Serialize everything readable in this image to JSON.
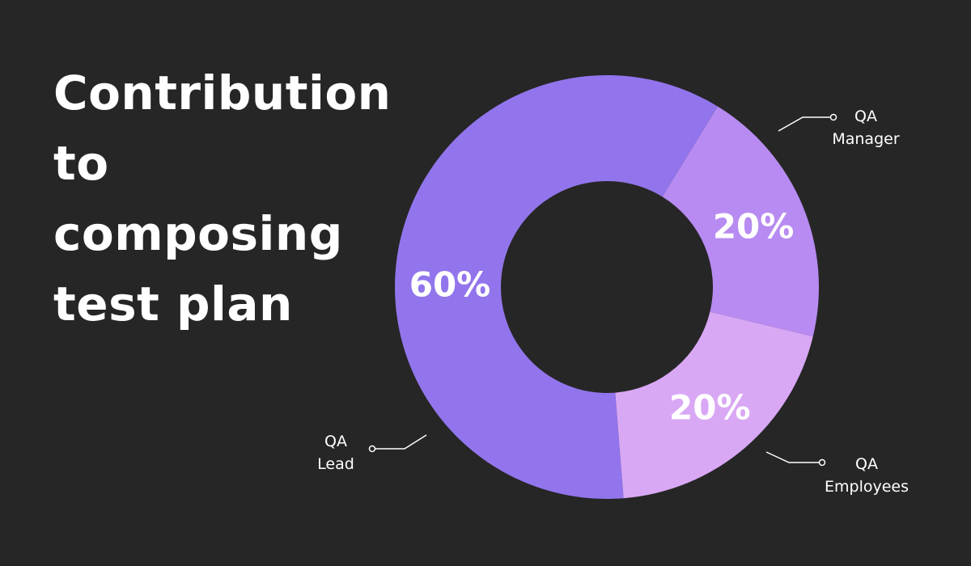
{
  "chart_data": {
    "type": "pie",
    "title": "Contribution to composing test plan",
    "slices": [
      {
        "label": "QA Manager",
        "value": 20,
        "display": "20%",
        "color": "#b78bf1"
      },
      {
        "label": "QA Employees",
        "value": 20,
        "display": "20%",
        "color": "#d9a8f5"
      },
      {
        "label": "QA Lead",
        "value": 60,
        "display": "60%",
        "color": "#9275ec"
      }
    ],
    "legend": "callouts"
  },
  "colors": {
    "background": "#262626",
    "text": "#ffffff"
  }
}
